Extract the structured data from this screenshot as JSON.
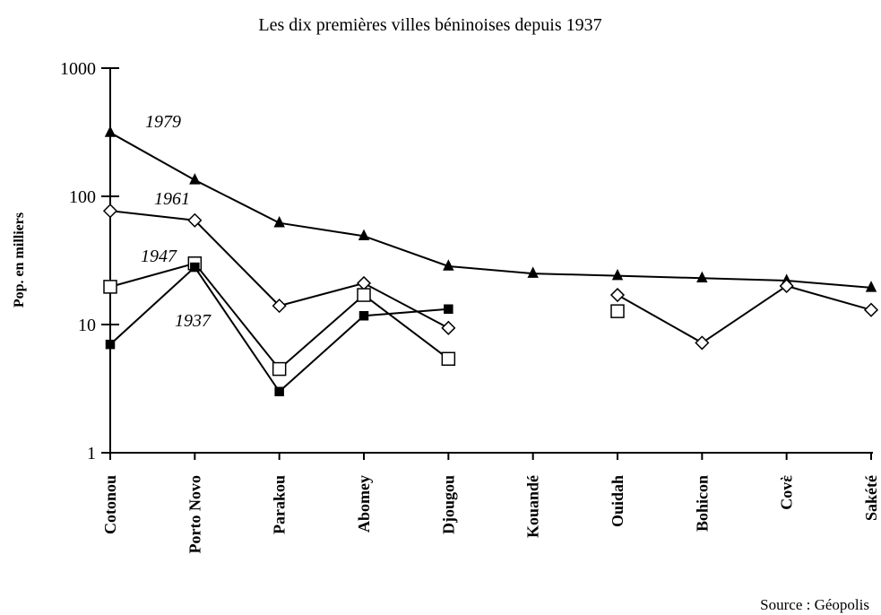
{
  "chart_data": {
    "type": "line",
    "title": "Les dix premières villes béninoises depuis 1937",
    "y_label": "Pop. en milliers",
    "source": "Source : Géopolis",
    "log_scale": true,
    "ylim": [
      1,
      1000
    ],
    "yticks": [
      1,
      10,
      100,
      1000
    ],
    "categories": [
      "Cotonou",
      "Porto Novo",
      "Parakou",
      "Abomey",
      "Djougou",
      "Kouandé",
      "Ouidah",
      "Bohicon",
      "Covὲ",
      "Sakété"
    ],
    "series": [
      {
        "name": "1979",
        "color": "#000000",
        "marker": "triangle",
        "values": [
          314,
          134,
          62,
          49,
          28.5,
          25,
          24,
          23,
          22,
          19.4
        ]
      },
      {
        "name": "1961",
        "color": "#000000",
        "marker": "diamond",
        "values": [
          77,
          65,
          14,
          21,
          9.4,
          null,
          17,
          7.2,
          20,
          13
        ]
      },
      {
        "name": "1947",
        "color": "#000000",
        "marker": "square-open",
        "values": [
          19.7,
          30,
          4.5,
          17,
          5.4,
          null,
          12.7,
          null,
          null,
          null
        ]
      },
      {
        "name": "1937",
        "color": "#000000",
        "marker": "square",
        "values": [
          7,
          28,
          3,
          11.7,
          13.2,
          null,
          null,
          null,
          null,
          null
        ]
      }
    ]
  }
}
